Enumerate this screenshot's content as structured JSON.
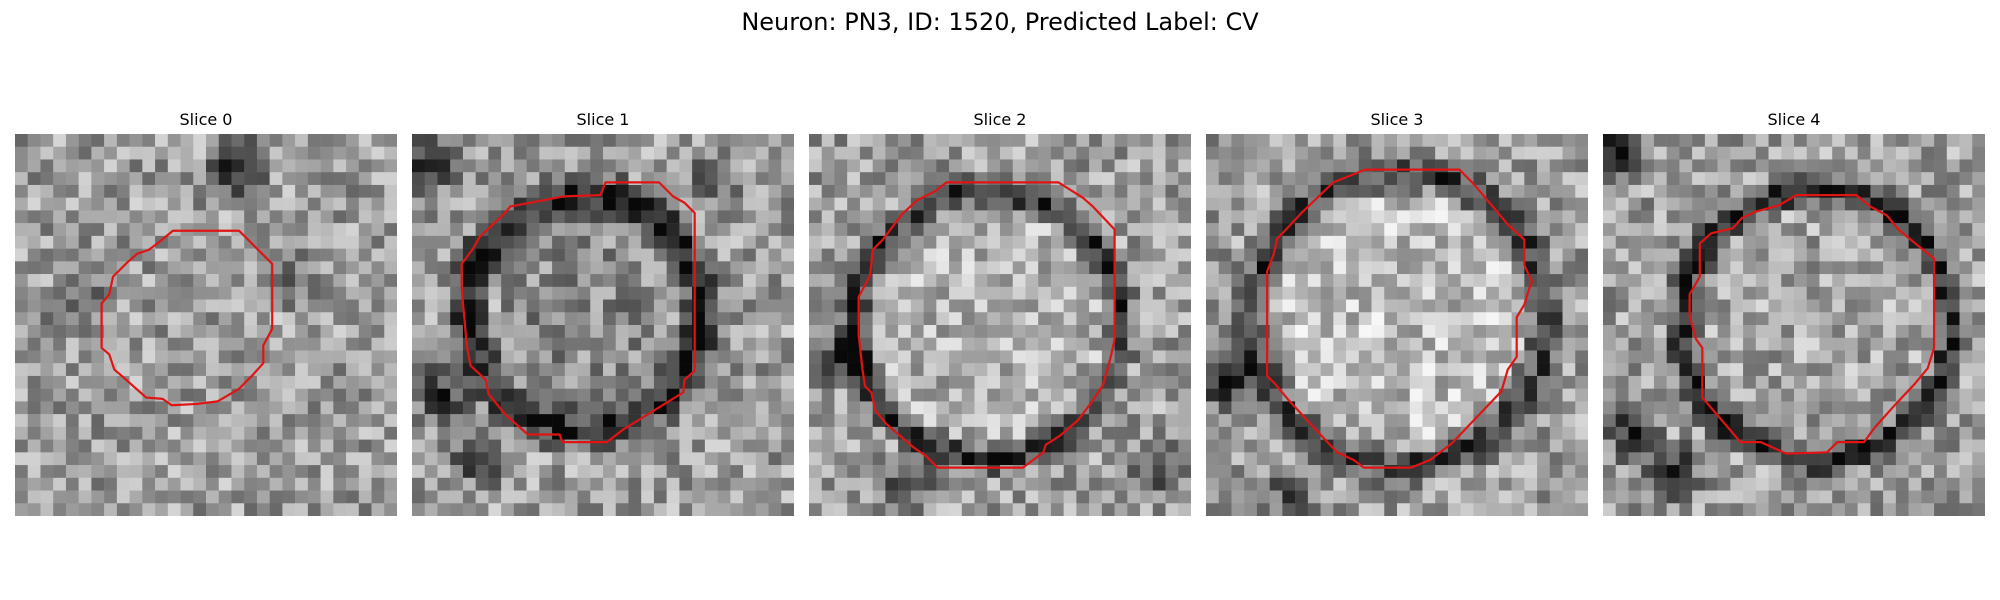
{
  "figure": {
    "title": "Neuron: PN3, ID: 1520, Predicted Label: CV"
  },
  "panels": [
    {
      "label": "Slice 0",
      "contour_color": "#e01414"
    },
    {
      "label": "Slice 1",
      "contour_color": "#e01414"
    },
    {
      "label": "Slice 2",
      "contour_color": "#e01414"
    },
    {
      "label": "Slice 3",
      "contour_color": "#e01414"
    },
    {
      "label": "Slice 4",
      "contour_color": "#e01414"
    }
  ]
}
